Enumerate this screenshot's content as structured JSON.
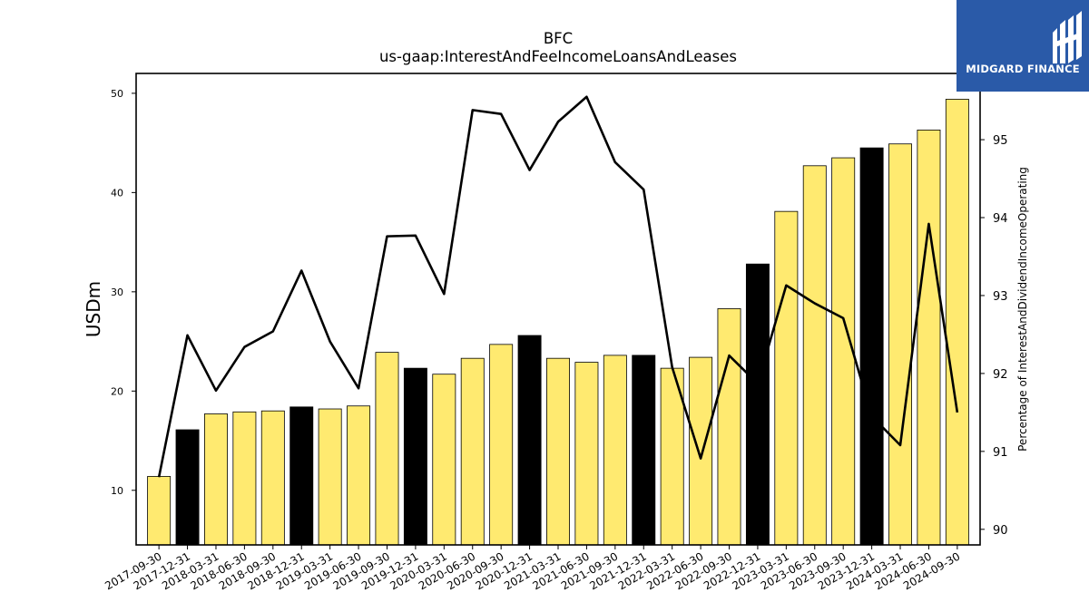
{
  "logo": {
    "text": "MIDGARD FINANCE"
  },
  "chart_data": {
    "type": "bar+line",
    "title": "BFC",
    "subtitle": "us-gaap:InterestAndFeeIncomeLoansAndLeases",
    "ylabel": "USDm",
    "y2label": "Percentage of InterestAndDividendIncomeOperating",
    "ylim": [
      4.5,
      52
    ],
    "y2lim": [
      89.8,
      95.85
    ],
    "yticks": [
      10,
      20,
      30,
      40,
      50
    ],
    "y2ticks": [
      90,
      91,
      92,
      93,
      94,
      95
    ],
    "categories": [
      "2017-09-30",
      "2017-12-31",
      "2018-03-31",
      "2018-06-30",
      "2018-09-30",
      "2018-12-31",
      "2019-03-31",
      "2019-06-30",
      "2019-09-30",
      "2019-12-31",
      "2020-03-31",
      "2020-06-30",
      "2020-09-30",
      "2020-12-31",
      "2021-03-31",
      "2021-06-30",
      "2021-09-30",
      "2021-12-31",
      "2022-03-31",
      "2022-06-30",
      "2022-09-30",
      "2022-12-31",
      "2023-03-31",
      "2023-06-30",
      "2023-09-30",
      "2023-12-31",
      "2024-03-31",
      "2024-06-30",
      "2024-09-30"
    ],
    "series": [
      {
        "values": [
          11.4,
          16.1,
          17.7,
          17.9,
          18.0,
          18.4,
          18.2,
          18.5,
          23.9,
          22.3,
          21.7,
          23.3,
          24.7,
          25.6,
          23.3,
          22.9,
          23.6,
          23.6,
          22.3,
          23.4,
          28.3,
          32.8,
          38.1,
          42.7,
          43.5,
          44.5,
          44.9,
          46.3,
          49.4
        ]
      },
      {
        "values": [
          90.67,
          92.49,
          91.78,
          92.34,
          92.54,
          93.32,
          92.41,
          91.81,
          93.76,
          93.77,
          93.02,
          95.38,
          95.33,
          94.61,
          95.23,
          95.55,
          94.71,
          94.36,
          92.08,
          90.91,
          92.23,
          91.87,
          93.13,
          92.9,
          92.71,
          91.45,
          91.08,
          93.92,
          91.5
        ]
      }
    ],
    "highlight_bars": [
      "2017-12-31",
      "2018-12-31",
      "2019-12-31",
      "2020-12-31",
      "2021-12-31",
      "2022-12-31",
      "2023-12-31"
    ],
    "colors": {
      "bar": "#ffea70",
      "bar_highlight": "#000000",
      "bar_edge": "#000000",
      "line": "#000000"
    },
    "grid": false
  }
}
